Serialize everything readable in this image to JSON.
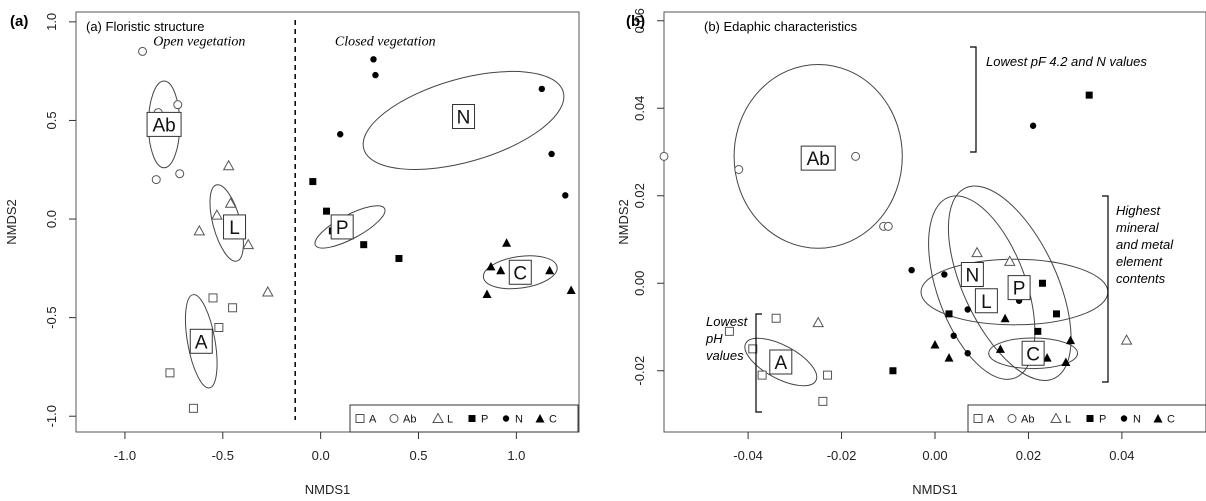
{
  "chart_data": [
    {
      "type": "scatter",
      "panel_letter": "(a)",
      "title": "(a) Floristic structure",
      "xlabel": "NMDS1",
      "ylabel": "NMDS2",
      "xlim": [
        -1.25,
        1.32
      ],
      "ylim": [
        -1.08,
        1.05
      ],
      "xticks": [
        -1.0,
        -0.5,
        0.0,
        0.5,
        1.0
      ],
      "xtick_labels": [
        "-1.0",
        "-0.5",
        "0.0",
        "0.5",
        "1.0"
      ],
      "yticks": [
        -1.0,
        -0.5,
        0.0,
        0.5,
        1.0
      ],
      "ytick_labels": [
        "-1.0",
        "-0.5",
        "0.0",
        "0.5",
        "1.0"
      ],
      "annotations": [
        {
          "text": "Open vegetation",
          "x": -0.62,
          "y": 0.88
        },
        {
          "text": "Closed vegetation",
          "x": 0.33,
          "y": 0.88
        }
      ],
      "divider_x": -0.13,
      "series": [
        {
          "name": "A",
          "marker": "open-square",
          "points": [
            [
              -0.55,
              -0.4
            ],
            [
              -0.45,
              -0.45
            ],
            [
              -0.52,
              -0.55
            ],
            [
              -0.77,
              -0.78
            ],
            [
              -0.65,
              -0.96
            ]
          ],
          "ellipse": {
            "cx": -0.61,
            "cy": -0.62,
            "rx": 0.07,
            "ry": 0.24,
            "angle": -10
          }
        },
        {
          "name": "Ab",
          "marker": "open-circle",
          "points": [
            [
              -0.91,
              0.85
            ],
            [
              -0.73,
              0.58
            ],
            [
              -0.83,
              0.54
            ],
            [
              -0.72,
              0.23
            ],
            [
              -0.84,
              0.2
            ]
          ],
          "ellipse": {
            "cx": -0.8,
            "cy": 0.48,
            "rx": 0.08,
            "ry": 0.22,
            "angle": 0
          }
        },
        {
          "name": "L",
          "marker": "open-triangle",
          "points": [
            [
              -0.47,
              0.27
            ],
            [
              -0.46,
              0.08
            ],
            [
              -0.53,
              0.02
            ],
            [
              -0.62,
              -0.06
            ],
            [
              -0.37,
              -0.13
            ],
            [
              -0.27,
              -0.37
            ]
          ],
          "ellipse": {
            "cx": -0.48,
            "cy": -0.02,
            "rx": 0.07,
            "ry": 0.2,
            "angle": -15
          }
        },
        {
          "name": "P",
          "marker": "filled-square",
          "points": [
            [
              -0.04,
              0.19
            ],
            [
              0.03,
              0.04
            ],
            [
              0.06,
              -0.06
            ],
            [
              0.22,
              -0.13
            ],
            [
              0.4,
              -0.2
            ]
          ],
          "ellipse": {
            "cx": 0.15,
            "cy": -0.04,
            "rx": 0.2,
            "ry": 0.06,
            "angle": -28
          }
        },
        {
          "name": "N",
          "marker": "filled-circle",
          "points": [
            [
              0.27,
              0.81
            ],
            [
              0.28,
              0.73
            ],
            [
              0.1,
              0.43
            ],
            [
              1.13,
              0.66
            ],
            [
              1.18,
              0.33
            ],
            [
              1.25,
              0.12
            ]
          ],
          "ellipse": {
            "cx": 0.73,
            "cy": 0.5,
            "rx": 0.53,
            "ry": 0.21,
            "angle": -16
          }
        },
        {
          "name": "C",
          "marker": "filled-triangle",
          "points": [
            [
              0.95,
              -0.12
            ],
            [
              0.87,
              -0.24
            ],
            [
              0.92,
              -0.26
            ],
            [
              1.17,
              -0.26
            ],
            [
              0.85,
              -0.38
            ],
            [
              1.28,
              -0.36
            ]
          ],
          "ellipse": {
            "cx": 1.02,
            "cy": -0.27,
            "rx": 0.19,
            "ry": 0.08,
            "angle": -8
          }
        }
      ],
      "legend": {
        "position": "bottom-right",
        "entries": [
          "A",
          "Ab",
          "L",
          "P",
          "N",
          "C"
        ]
      }
    },
    {
      "type": "scatter",
      "panel_letter": "(b)",
      "title": "(b) Edaphic characteristics",
      "xlabel": "NMDS1",
      "ylabel": "NMDS2",
      "xlim": [
        -0.058,
        0.058
      ],
      "ylim": [
        -0.034,
        0.062
      ],
      "xticks": [
        -0.04,
        -0.02,
        0.0,
        0.02,
        0.04
      ],
      "xtick_labels": [
        "-0.04",
        "-0.02",
        "0.00",
        "0.02",
        "0.04"
      ],
      "yticks": [
        -0.02,
        0.0,
        0.02,
        0.04,
        0.06
      ],
      "ytick_labels": [
        "-0.02",
        "0.00",
        "0.02",
        "0.04",
        "0.06"
      ],
      "annotations": [
        {
          "lines": [
            "Lowest pF 4.2 and N values"
          ]
        },
        {
          "lines": [
            "Highest",
            "mineral",
            "and metal",
            "element",
            "contents"
          ]
        },
        {
          "lines": [
            "Lowest",
            "pH",
            "values"
          ]
        }
      ],
      "series": [
        {
          "name": "A",
          "marker": "open-square",
          "points": [
            [
              -0.044,
              -0.011
            ],
            [
              -0.039,
              -0.015
            ],
            [
              -0.034,
              -0.008
            ],
            [
              -0.037,
              -0.021
            ],
            [
              -0.023,
              -0.021
            ],
            [
              -0.024,
              -0.027
            ]
          ],
          "ellipse": {
            "cx": -0.033,
            "cy": -0.018,
            "rx": 0.0085,
            "ry": 0.0038,
            "angle": 28
          }
        },
        {
          "name": "Ab",
          "marker": "open-circle",
          "points": [
            [
              -0.058,
              0.029
            ],
            [
              -0.042,
              0.026
            ],
            [
              -0.017,
              0.029
            ],
            [
              -0.011,
              0.013
            ],
            [
              -0.01,
              0.013
            ]
          ],
          "ellipse": {
            "cx": -0.025,
            "cy": 0.029,
            "rx": 0.018,
            "ry": 0.021,
            "angle": 0
          }
        },
        {
          "name": "L",
          "marker": "open-triangle",
          "points": [
            [
              -0.025,
              -0.009
            ],
            [
              0.009,
              0.007
            ],
            [
              0.016,
              0.005
            ],
            [
              0.041,
              -0.013
            ]
          ],
          "ellipse": {
            "cx": 0.01,
            "cy": -0.001,
            "rx": 0.0095,
            "ry": 0.022,
            "angle": -20
          }
        },
        {
          "name": "P",
          "marker": "filled-square",
          "points": [
            [
              0.033,
              0.043
            ],
            [
              -0.009,
              -0.02
            ],
            [
              0.003,
              -0.007
            ],
            [
              0.023,
              0.0
            ],
            [
              0.026,
              -0.007
            ],
            [
              0.022,
              -0.011
            ]
          ],
          "ellipse": {
            "cx": 0.016,
            "cy": 0.0,
            "rx": 0.01,
            "ry": 0.024,
            "angle": -25
          }
        },
        {
          "name": "N",
          "marker": "filled-circle",
          "points": [
            [
              0.021,
              0.036
            ],
            [
              -0.005,
              0.003
            ],
            [
              0.002,
              0.002
            ],
            [
              0.018,
              -0.004
            ],
            [
              0.007,
              -0.006
            ],
            [
              0.004,
              -0.012
            ],
            [
              0.007,
              -0.016
            ]
          ],
          "ellipse": {
            "cx": 0.017,
            "cy": -0.002,
            "rx": 0.02,
            "ry": 0.0075,
            "angle": 0
          }
        },
        {
          "name": "C",
          "marker": "filled-triangle",
          "points": [
            [
              0.015,
              -0.008
            ],
            [
              0.0,
              -0.014
            ],
            [
              0.014,
              -0.015
            ],
            [
              0.029,
              -0.013
            ],
            [
              0.003,
              -0.017
            ],
            [
              0.02,
              -0.017
            ],
            [
              0.024,
              -0.017
            ],
            [
              0.028,
              -0.018
            ]
          ],
          "ellipse": {
            "cx": 0.021,
            "cy": -0.016,
            "rx": 0.0095,
            "ry": 0.0035,
            "angle": 0
          }
        }
      ],
      "legend": {
        "position": "bottom-right",
        "entries": [
          "A",
          "Ab",
          "L",
          "P",
          "N",
          "C"
        ]
      }
    }
  ]
}
